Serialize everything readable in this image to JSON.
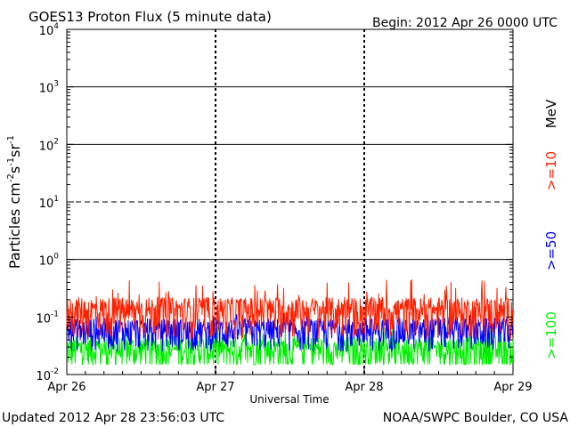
{
  "header": {
    "title": "GOES13 Proton Flux (5 minute data)",
    "begin": "Begin: 2012 Apr 26 0000 UTC"
  },
  "footer": {
    "updated": "Updated 2012 Apr 28 23:56:03 UTC",
    "credit": "NOAA/SWPC Boulder, CO USA"
  },
  "chart_data": {
    "type": "line",
    "title": "GOES13 Proton Flux (5 minute data)",
    "xlabel": "Universal Time",
    "ylabel": "Particles cm-2s-1sr-1",
    "y_scale": "log",
    "ylim": [
      0.01,
      10000
    ],
    "y_ticks": [
      {
        "base": "10",
        "exp": "-2",
        "value": 0.01
      },
      {
        "base": "10",
        "exp": "-1",
        "value": 0.1
      },
      {
        "base": "10",
        "exp": "0",
        "value": 1
      },
      {
        "base": "10",
        "exp": "1",
        "value": 10
      },
      {
        "base": "10",
        "exp": "2",
        "value": 100
      },
      {
        "base": "10",
        "exp": "3",
        "value": 1000
      },
      {
        "base": "10",
        "exp": "4",
        "value": 10000
      }
    ],
    "x_ticks": [
      "Apr 26",
      "Apr 27",
      "Apr 28",
      "Apr 29"
    ],
    "xlim_days": [
      0,
      3
    ],
    "unit_label": "MeV",
    "threshold_lines": [
      {
        "value": 10,
        "style": "dashed"
      },
      {
        "value": 1,
        "style": "solid"
      }
    ],
    "series": [
      {
        "name": ">=10",
        "color": "#ff2000",
        "base": 0.13,
        "spread": 0.09,
        "spike_max": 0.45,
        "samples": 864
      },
      {
        "name": ">=50",
        "color": "#0000ff",
        "base": 0.06,
        "spread": 0.035,
        "spike_max": 0.12,
        "samples": 864
      },
      {
        "name": ">=100",
        "color": "#00ee00",
        "base": 0.028,
        "spread": 0.018,
        "spike_max": 0.07,
        "samples": 864
      }
    ]
  }
}
